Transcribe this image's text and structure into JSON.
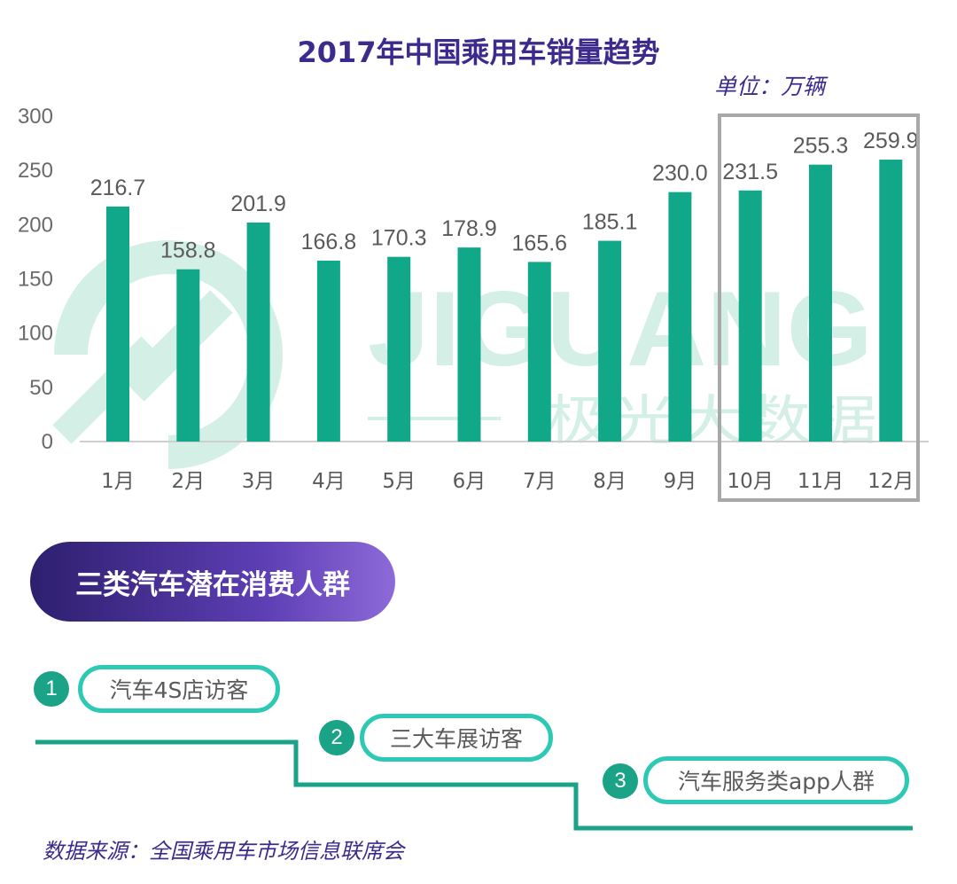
{
  "chart_data": {
    "type": "bar",
    "title": "2017年中国乘用车销量趋势",
    "unit_label": "单位：万辆",
    "categories": [
      "1月",
      "2月",
      "3月",
      "4月",
      "5月",
      "6月",
      "7月",
      "8月",
      "9月",
      "10月",
      "11月",
      "12月"
    ],
    "values": [
      216.7,
      158.8,
      201.9,
      166.8,
      170.3,
      178.9,
      165.6,
      185.1,
      230.0,
      231.5,
      255.3,
      259.9
    ],
    "value_labels": [
      "216.7",
      "158.8",
      "201.9",
      "166.8",
      "170.3",
      "178.9",
      "165.6",
      "185.1",
      "230.0",
      "231.5",
      "255.3",
      "259.9"
    ],
    "yticks": [
      "0",
      "50",
      "100",
      "150",
      "200",
      "250",
      "300"
    ],
    "ylim": [
      0,
      300
    ],
    "xlabel": "",
    "ylabel": "",
    "highlight_categories": [
      "10月",
      "11月",
      "12月"
    ],
    "bar_color": "#11a889",
    "highlight_box_color": "#a8a8a8"
  },
  "watermark": {
    "brand": "JIGUANG",
    "brand_cn": "极光大数据"
  },
  "section": {
    "title": "三类汽车潜在消费人群"
  },
  "groups": [
    {
      "number": "1",
      "label": "汽车4S店访客"
    },
    {
      "number": "2",
      "label": "三大车展访客"
    },
    {
      "number": "3",
      "label": "汽车服务类app人群"
    }
  ],
  "colors": {
    "accent_teal": "#1aa387",
    "pill_border": "#2ec9b4",
    "title_purple": "#3c2a8c"
  },
  "source": {
    "text": "数据来源：全国乘用车市场信息联席会"
  }
}
